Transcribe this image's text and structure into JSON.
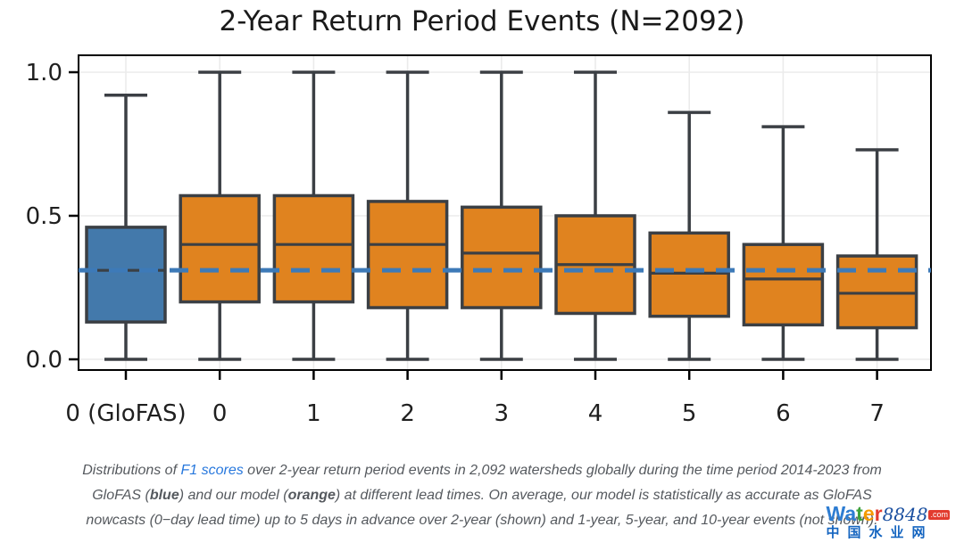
{
  "title": "2-Year Return Period Events (N=2092)",
  "chart_data": {
    "type": "boxplot",
    "title": "2-Year Return Period Events (N=2092)",
    "xlabel": "",
    "ylabel": "",
    "categories": [
      "0 (GloFAS)",
      "0",
      "1",
      "2",
      "3",
      "4",
      "5",
      "6",
      "7"
    ],
    "boxes": [
      {
        "label": "0 (GloFAS)",
        "series": "GloFAS",
        "whislo": 0.0,
        "q1": 0.13,
        "med": 0.31,
        "q3": 0.46,
        "whishi": 0.92
      },
      {
        "label": "0",
        "series": "Our model",
        "whislo": 0.0,
        "q1": 0.2,
        "med": 0.4,
        "q3": 0.57,
        "whishi": 1.0
      },
      {
        "label": "1",
        "series": "Our model",
        "whislo": 0.0,
        "q1": 0.2,
        "med": 0.4,
        "q3": 0.57,
        "whishi": 1.0
      },
      {
        "label": "2",
        "series": "Our model",
        "whislo": 0.0,
        "q1": 0.18,
        "med": 0.4,
        "q3": 0.55,
        "whishi": 1.0
      },
      {
        "label": "3",
        "series": "Our model",
        "whislo": 0.0,
        "q1": 0.18,
        "med": 0.37,
        "q3": 0.53,
        "whishi": 1.0
      },
      {
        "label": "4",
        "series": "Our model",
        "whislo": 0.0,
        "q1": 0.16,
        "med": 0.33,
        "q3": 0.5,
        "whishi": 1.0
      },
      {
        "label": "5",
        "series": "Our model",
        "whislo": 0.0,
        "q1": 0.15,
        "med": 0.3,
        "q3": 0.44,
        "whishi": 0.86
      },
      {
        "label": "6",
        "series": "Our model",
        "whislo": 0.0,
        "q1": 0.12,
        "med": 0.28,
        "q3": 0.4,
        "whishi": 0.81
      },
      {
        "label": "7",
        "series": "Our model",
        "whislo": 0.0,
        "q1": 0.11,
        "med": 0.23,
        "q3": 0.36,
        "whishi": 0.73
      }
    ],
    "reference_line": {
      "value": 0.31,
      "label": "GloFAS nowcast median",
      "style": "dashed",
      "color": "#3d7ab8"
    },
    "yticks": [
      "0.0",
      "0.5",
      "1.0"
    ],
    "ytick_values": [
      0.0,
      0.5,
      1.0
    ],
    "ylim": [
      -0.045,
      1.06
    ],
    "grid": true,
    "legend": "none",
    "colors": {
      "glofas_blue": "#4379ab",
      "model_orange": "#e0831f",
      "box_edge": "#3b3f44",
      "grid": "#ebebeb",
      "axis": "#000000",
      "tick_label": "#1f1f1f"
    }
  },
  "caption": {
    "text_color": "#55595e",
    "link_color": "#2878dd",
    "lines": [
      [
        {
          "text": "Distributions of ",
          "style": "normal"
        },
        {
          "text": "F1 scores",
          "style": "link"
        },
        {
          "text": " over 2-year return period events in 2,092 watersheds globally during the time period 2014-2023 from",
          "style": "normal"
        }
      ],
      [
        {
          "text": "GloFAS (",
          "style": "normal"
        },
        {
          "text": "blue",
          "style": "bold"
        },
        {
          "text": ") and our model (",
          "style": "normal"
        },
        {
          "text": "orange",
          "style": "bold"
        },
        {
          "text": ") at different lead times. On average, our model is statistically as accurate as GloFAS",
          "style": "normal"
        }
      ],
      [
        {
          "text": "nowcasts (0−day lead time) up to 5 days in advance over 2-year (shown) and 1-year, 5-year, and 10-year events (not shown).",
          "style": "normal"
        }
      ]
    ]
  },
  "watermark": {
    "word_letters": [
      {
        "ch": "W",
        "color": "#2e7dd2"
      },
      {
        "ch": "a",
        "color": "#2e7dd2"
      },
      {
        "ch": "t",
        "color": "#3fa23c"
      },
      {
        "ch": "e",
        "color": "#f59b00"
      },
      {
        "ch": "r",
        "color": "#e23b2e"
      }
    ],
    "number": "8848",
    "number_color": "#1a4fa0",
    "tld": ".com",
    "tld_bg": "#e23b2e",
    "cn_text": "中国水业网",
    "cn_color": "#1565c0"
  }
}
